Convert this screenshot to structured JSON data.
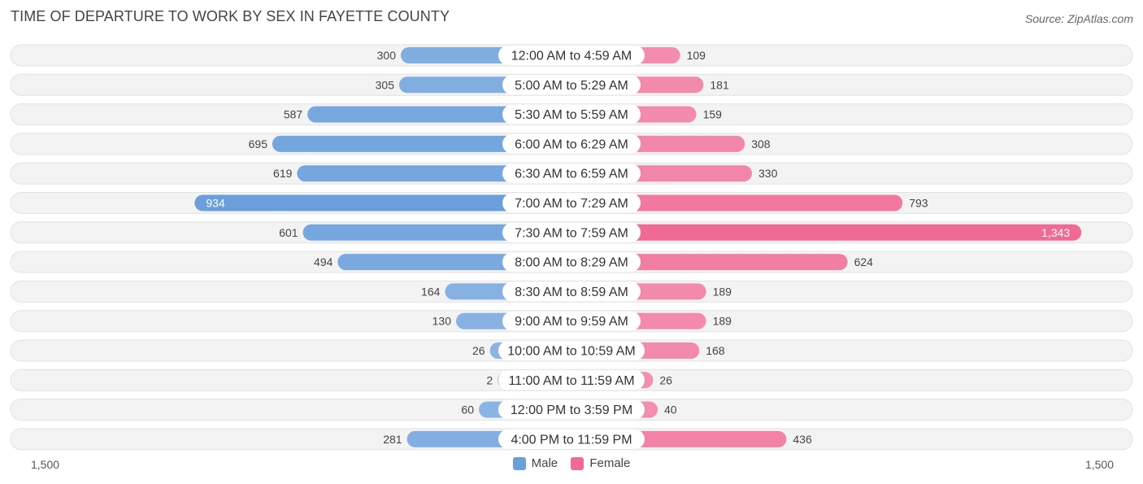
{
  "header": {
    "title": "TIME OF DEPARTURE TO WORK BY SEX IN FAYETTE COUNTY",
    "source": "Source: ZipAtlas.com"
  },
  "axis": {
    "left_label": "1,500",
    "right_label": "1,500"
  },
  "colors": {
    "male": "#6a9fdc",
    "male_light": "#9fc1e8",
    "female": "#f06a94",
    "female_light": "#f5a3bf",
    "row_bg": "#efefef"
  },
  "chart_data": {
    "type": "bar",
    "orientation": "diverging-horizontal",
    "xlim": [
      -1500,
      1500
    ],
    "categories": [
      "12:00 AM to 4:59 AM",
      "5:00 AM to 5:29 AM",
      "5:30 AM to 5:59 AM",
      "6:00 AM to 6:29 AM",
      "6:30 AM to 6:59 AM",
      "7:00 AM to 7:29 AM",
      "7:30 AM to 7:59 AM",
      "8:00 AM to 8:29 AM",
      "8:30 AM to 8:59 AM",
      "9:00 AM to 9:59 AM",
      "10:00 AM to 10:59 AM",
      "11:00 AM to 11:59 AM",
      "12:00 PM to 3:59 PM",
      "4:00 PM to 11:59 PM"
    ],
    "series": [
      {
        "name": "Male",
        "values": [
          300,
          305,
          587,
          695,
          619,
          934,
          601,
          494,
          164,
          130,
          26,
          2,
          60,
          281
        ]
      },
      {
        "name": "Female",
        "values": [
          109,
          181,
          159,
          308,
          330,
          793,
          1343,
          624,
          189,
          189,
          168,
          26,
          40,
          436
        ]
      }
    ],
    "value_labels": {
      "male": [
        "300",
        "305",
        "587",
        "695",
        "619",
        "934",
        "601",
        "494",
        "164",
        "130",
        "26",
        "2",
        "60",
        "281"
      ],
      "female": [
        "109",
        "181",
        "159",
        "308",
        "330",
        "793",
        "1,343",
        "624",
        "189",
        "189",
        "168",
        "26",
        "40",
        "436"
      ]
    },
    "legend": [
      "Male",
      "Female"
    ],
    "legend_position": "bottom-center"
  }
}
